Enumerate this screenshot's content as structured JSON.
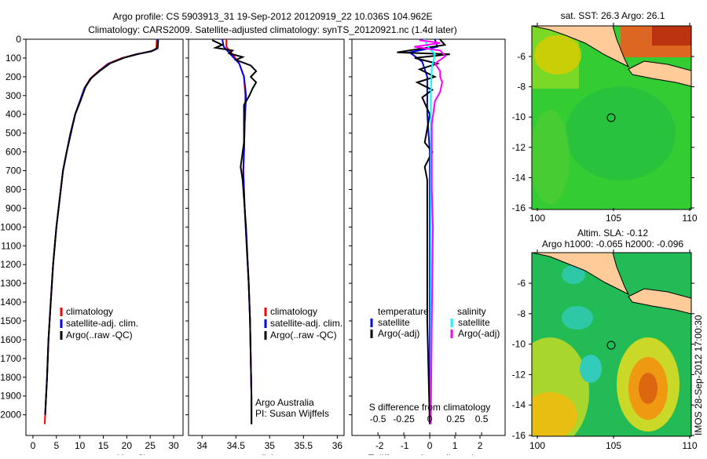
{
  "title_line1": "Argo profile: CS 5903913_31 19-Sep-2012 20120919_22 10.036S 104.962E",
  "title_line2": "Climatology: CARS2009. Satellite-adjusted climatology: synTS_20120921.nc (1.4d later)",
  "colors": {
    "climatology": "#ff0000",
    "satellite": "#0000ff",
    "argo": "#000000",
    "sal_satellite": "#00ffff",
    "sal_argo": "#ff00ff",
    "land": "#ffcc99"
  },
  "chart_data": [
    {
      "type": "line",
      "title": "",
      "xlabel": "temperature (deg C)",
      "ylabel": "",
      "xlim": [
        -1.5,
        32
      ],
      "ylim": [
        2110,
        0
      ],
      "xticks": [
        0,
        5,
        10,
        15,
        20,
        25,
        30
      ],
      "yticks": [
        0,
        100,
        200,
        300,
        400,
        500,
        600,
        700,
        800,
        900,
        1000,
        1100,
        1200,
        1300,
        1400,
        1500,
        1600,
        1700,
        1800,
        1900,
        2000
      ],
      "legend": {
        "placement": "lower-middle",
        "entries": [
          "climatology",
          "satellite-adj. clim.",
          "Argo(..raw -QC)"
        ]
      },
      "series": [
        {
          "name": "climatology",
          "color": "#ff0000",
          "points": [
            [
              26.4,
              0
            ],
            [
              26.3,
              50
            ],
            [
              25,
              65
            ],
            [
              22,
              80
            ],
            [
              19,
              100
            ],
            [
              16,
              130
            ],
            [
              14,
              170
            ],
            [
              12.2,
              210
            ],
            [
              11,
              260
            ],
            [
              10,
              330
            ],
            [
              9,
              400
            ],
            [
              8,
              500
            ],
            [
              7.2,
              600
            ],
            [
              6.4,
              700
            ],
            [
              5.7,
              850
            ],
            [
              5,
              1000
            ],
            [
              4.3,
              1200
            ],
            [
              3.8,
              1400
            ],
            [
              3.3,
              1600
            ],
            [
              3,
              1800
            ],
            [
              2.6,
              2000
            ],
            [
              2.5,
              2050
            ]
          ]
        },
        {
          "name": "satellite-adj. clim.",
          "color": "#0000ff",
          "points": [
            [
              26.6,
              0
            ],
            [
              26.5,
              50
            ],
            [
              25.2,
              65
            ],
            [
              22.2,
              80
            ],
            [
              19.2,
              100
            ],
            [
              16.2,
              130
            ],
            [
              14.1,
              170
            ],
            [
              12.3,
              210
            ],
            [
              11,
              260
            ],
            [
              10,
              330
            ],
            [
              9,
              400
            ],
            [
              8,
              500
            ],
            [
              7.2,
              600
            ],
            [
              6.4,
              700
            ],
            [
              5.7,
              850
            ],
            [
              5,
              1000
            ],
            [
              4.3,
              1200
            ],
            [
              3.8,
              1400
            ],
            [
              3.3,
              1600
            ],
            [
              3,
              1800
            ],
            [
              2.6,
              2000
            ]
          ]
        },
        {
          "name": "Argo(..raw -QC)",
          "color": "#000000",
          "points": [
            [
              26.7,
              5
            ],
            [
              26.6,
              45
            ],
            [
              25.5,
              62
            ],
            [
              22.5,
              78
            ],
            [
              19.5,
              98
            ],
            [
              16.5,
              128
            ],
            [
              14.3,
              168
            ],
            [
              12.5,
              205
            ],
            [
              11.2,
              255
            ],
            [
              10.1,
              330
            ],
            [
              9,
              400
            ],
            [
              8.1,
              500
            ],
            [
              7.2,
              600
            ],
            [
              6.4,
              700
            ],
            [
              5.7,
              850
            ],
            [
              5,
              1000
            ],
            [
              4.3,
              1200
            ],
            [
              3.8,
              1400
            ],
            [
              3.3,
              1600
            ],
            [
              3,
              1800
            ],
            [
              2.6,
              2000
            ]
          ]
        }
      ]
    },
    {
      "type": "line",
      "xlabel": "salinity",
      "xlim": [
        33.8,
        36.1
      ],
      "ylim": [
        2110,
        0
      ],
      "xticks": [
        34,
        34.5,
        35,
        35.5,
        36
      ],
      "xtick_labels": [
        "34",
        "34.5",
        "35",
        "35.5",
        "36"
      ],
      "legend": {
        "placement": "lower-middle",
        "entries": [
          "climatology",
          "satellite-adj. clim.",
          "Argo(..raw -QC)"
        ]
      },
      "annotation": [
        "Argo Australia",
        "PI: Susan Wijffels"
      ],
      "series": [
        {
          "name": "climatology",
          "color": "#ff0000",
          "points": [
            [
              34.36,
              0
            ],
            [
              34.36,
              40
            ],
            [
              34.45,
              80
            ],
            [
              34.55,
              130
            ],
            [
              34.62,
              200
            ],
            [
              34.64,
              300
            ],
            [
              34.63,
              450
            ],
            [
              34.62,
              600
            ],
            [
              34.61,
              700
            ],
            [
              34.63,
              900
            ],
            [
              34.66,
              1100
            ],
            [
              34.69,
              1300
            ],
            [
              34.71,
              1500
            ],
            [
              34.72,
              1700
            ],
            [
              34.73,
              1900
            ],
            [
              34.73,
              2050
            ]
          ]
        },
        {
          "name": "satellite-adj. clim.",
          "color": "#0000ff",
          "points": [
            [
              34.3,
              0
            ],
            [
              34.32,
              40
            ],
            [
              34.42,
              80
            ],
            [
              34.55,
              130
            ],
            [
              34.62,
              200
            ],
            [
              34.65,
              300
            ],
            [
              34.63,
              450
            ],
            [
              34.62,
              600
            ],
            [
              34.61,
              700
            ],
            [
              34.63,
              900
            ],
            [
              34.66,
              1100
            ],
            [
              34.69,
              1300
            ],
            [
              34.71,
              1500
            ],
            [
              34.72,
              1700
            ],
            [
              34.73,
              1900
            ],
            [
              34.73,
              2050
            ]
          ]
        },
        {
          "name": "Argo(..raw -QC)",
          "color": "#000000",
          "points": [
            [
              34.15,
              5
            ],
            [
              34.3,
              30
            ],
            [
              34.2,
              45
            ],
            [
              34.45,
              60
            ],
            [
              34.4,
              75
            ],
            [
              34.6,
              95
            ],
            [
              34.5,
              110
            ],
            [
              34.72,
              140
            ],
            [
              34.8,
              170
            ],
            [
              34.72,
              200
            ],
            [
              34.8,
              230
            ],
            [
              34.75,
              260
            ],
            [
              34.7,
              300
            ],
            [
              34.62,
              350
            ],
            [
              34.62,
              450
            ],
            [
              34.62,
              550
            ],
            [
              34.57,
              680
            ],
            [
              34.6,
              750
            ],
            [
              34.62,
              850
            ],
            [
              34.65,
              1000
            ],
            [
              34.67,
              1150
            ],
            [
              34.69,
              1300
            ],
            [
              34.71,
              1500
            ],
            [
              34.72,
              1700
            ],
            [
              34.73,
              1900
            ],
            [
              34.73,
              2050
            ]
          ]
        }
      ]
    },
    {
      "type": "line",
      "xlabel": "T difference from climatology",
      "x2label": "S difference from climatology",
      "xlim": [
        -3.1,
        3.0
      ],
      "ylim": [
        2110,
        0
      ],
      "xticks": [
        -2,
        -1,
        0,
        1,
        2
      ],
      "x2ticks": [
        -0.5,
        -0.25,
        0,
        0.25,
        0.5
      ],
      "x2tick_labels": [
        "-0.5",
        "-0.25",
        "0",
        "0.25",
        "0.5"
      ],
      "legend": {
        "placement": "lower-middle",
        "temperature_header": "temperature",
        "salinity_header": "salinity",
        "entries": [
          "satellite",
          "Argo(-adj)",
          "satellite",
          "Argo(-adj)"
        ]
      },
      "series": [
        {
          "name": "temperature satellite",
          "axis": "T",
          "color": "#0000ff",
          "points": [
            [
              0.2,
              0
            ],
            [
              0.3,
              40
            ],
            [
              -0.8,
              70
            ],
            [
              -0.3,
              120
            ],
            [
              -0.1,
              200
            ],
            [
              -0.1,
              400
            ],
            [
              0,
              600
            ],
            [
              0,
              1000
            ],
            [
              0,
              2050
            ]
          ]
        },
        {
          "name": "temperature Argo(-adj)",
          "axis": "T",
          "color": "#000000",
          "points": [
            [
              0.4,
              0
            ],
            [
              0.6,
              30
            ],
            [
              -1.3,
              70
            ],
            [
              0.8,
              80
            ],
            [
              -0.6,
              100
            ],
            [
              0.3,
              130
            ],
            [
              -0.4,
              160
            ],
            [
              0.2,
              200
            ],
            [
              -0.5,
              230
            ],
            [
              0.1,
              270
            ],
            [
              -0.3,
              310
            ],
            [
              0,
              400
            ],
            [
              -0.2,
              550
            ],
            [
              0.1,
              600
            ],
            [
              -0.2,
              680
            ],
            [
              -0.1,
              750
            ],
            [
              -0.1,
              1000
            ],
            [
              -0.1,
              1500
            ],
            [
              0,
              2050
            ]
          ]
        },
        {
          "name": "salinity satellite",
          "axis": "S",
          "color": "#00ffff",
          "points": [
            [
              -0.05,
              0
            ],
            [
              -0.02,
              40
            ],
            [
              0.05,
              80
            ],
            [
              0.02,
              150
            ],
            [
              0.01,
              300
            ],
            [
              0.01,
              600
            ],
            [
              0.01,
              1000
            ],
            [
              0.01,
              2050
            ]
          ]
        },
        {
          "name": "salinity Argo(-adj)",
          "axis": "S",
          "color": "#ff00ff",
          "points": [
            [
              -0.1,
              5
            ],
            [
              0.1,
              20
            ],
            [
              -0.15,
              40
            ],
            [
              0.1,
              60
            ],
            [
              0.15,
              90
            ],
            [
              0.05,
              130
            ],
            [
              0.1,
              170
            ],
            [
              0.1,
              200
            ],
            [
              0.12,
              230
            ],
            [
              0.1,
              280
            ],
            [
              0.05,
              330
            ],
            [
              0.02,
              450
            ],
            [
              0.02,
              800
            ],
            [
              0.03,
              1000
            ],
            [
              0.02,
              1500
            ],
            [
              0.01,
              2050
            ]
          ]
        }
      ]
    },
    {
      "type": "heatmap",
      "title": "sat. SST: 26.3 Argo: 26.1",
      "xlim": [
        100,
        110
      ],
      "ylim": [
        -16,
        -4.5
      ],
      "xticks": [
        100,
        105,
        110
      ],
      "yticks": [
        -6,
        -8,
        -10,
        -12,
        -14,
        -16
      ],
      "marker": [
        104.962,
        -10.036
      ]
    },
    {
      "type": "heatmap",
      "title_line1": "Altim. SLA: -0.12",
      "title_line2": "Argo h1000: -0.065 h2000: -0.096",
      "xlim": [
        100,
        110
      ],
      "ylim": [
        -16,
        -4.5
      ],
      "xticks": [
        100,
        105,
        110
      ],
      "yticks": [
        -6,
        -8,
        -10,
        -12,
        -14,
        -16
      ],
      "marker": [
        104.962,
        -10.036
      ]
    }
  ],
  "footer_stamp": "IMOS 28-Sep-2012 17:00:30"
}
